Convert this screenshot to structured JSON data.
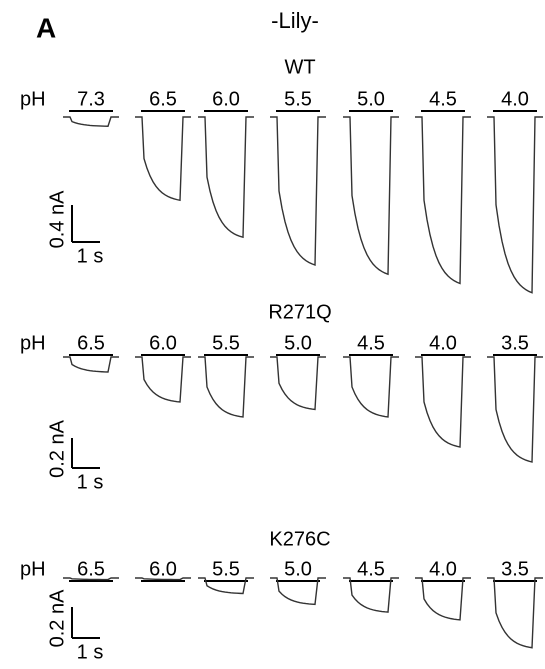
{
  "panel_label": "A",
  "title": "-Lily-",
  "panels": [
    {
      "name": "WT",
      "ph_label": "pH",
      "conditions": [
        "7.3",
        "6.5",
        "6.0",
        "5.5",
        "5.0",
        "4.5",
        "4.0"
      ],
      "peak_current_nA": [
        0.1,
        0.9,
        1.3,
        1.6,
        1.7,
        1.8,
        1.9
      ],
      "scale_current": {
        "value": 0.4,
        "label": "0.4 nA"
      },
      "scale_time": {
        "value": 1,
        "label": "1 s"
      }
    },
    {
      "name": "R271Q",
      "ph_label": "pH",
      "conditions": [
        "6.5",
        "6.0",
        "5.5",
        "5.0",
        "4.5",
        "4.0",
        "3.5"
      ],
      "peak_current_nA": [
        0.1,
        0.3,
        0.4,
        0.35,
        0.4,
        0.6,
        0.7
      ],
      "scale_current": {
        "value": 0.2,
        "label": "0.2 nA"
      },
      "scale_time": {
        "value": 1,
        "label": "1 s"
      }
    },
    {
      "name": "K276C",
      "ph_label": "pH",
      "conditions": [
        "6.5",
        "6.0",
        "5.5",
        "5.0",
        "4.5",
        "4.0",
        "3.5"
      ],
      "peak_current_nA": [
        0.01,
        0.01,
        0.1,
        0.17,
        0.22,
        0.27,
        0.45
      ],
      "scale_current": {
        "value": 0.2,
        "label": "0.2 nA"
      },
      "scale_time": {
        "value": 1,
        "label": "1 s"
      }
    }
  ]
}
